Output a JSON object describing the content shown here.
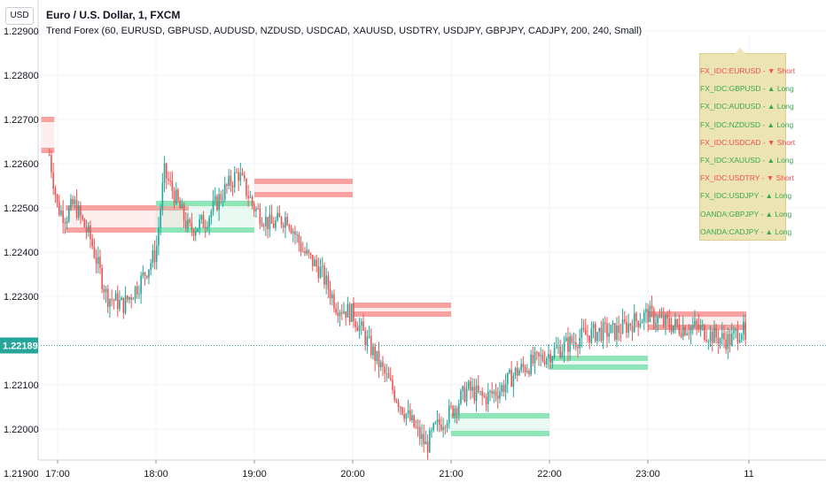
{
  "header": {
    "symbol_title": "Euro / U.S. Dollar, 1, FXCM",
    "indicator": "Trend Forex (60, EURUSD, GBPUSD, AUDUSD, NZDUSD, USDCAD, XAUUSD, USDTRY, USDJPY, GBPJPY, CADJPY, 200, 240, Small)"
  },
  "currency_badge": "USD",
  "colors": {
    "bull": "#26a69a",
    "bear": "#ef5350",
    "short_zone": "#f7a1a1",
    "long_zone": "#8ee6b8",
    "table_bg": "#ece5b3",
    "short_text": "#f14c4c",
    "long_text": "#3aa654"
  },
  "price_axis": {
    "labels": [
      "1.22900",
      "1.22800",
      "1.22700",
      "1.22600",
      "1.22500",
      "1.22400",
      "1.22300",
      "1.22100",
      "1.22000",
      "1.21900"
    ],
    "current_price": "1.22189"
  },
  "time_axis": {
    "labels": [
      "17:00",
      "18:00",
      "19:00",
      "20:00",
      "21:00",
      "22:00",
      "23:00",
      "11"
    ]
  },
  "trend_table": [
    {
      "label": "FX_IDC:EURUSD - ▼ Short",
      "direction": "short"
    },
    {
      "label": "FX_IDC:GBPUSD - ▲ Long",
      "direction": "long"
    },
    {
      "label": "FX_IDC:AUDUSD - ▲ Long",
      "direction": "long"
    },
    {
      "label": "FX_IDC:NZDUSD - ▲ Long",
      "direction": "long"
    },
    {
      "label": "FX_IDC:USDCAD - ▼ Short",
      "direction": "short"
    },
    {
      "label": "FX_IDC:XAUUSD - ▲ Long",
      "direction": "long"
    },
    {
      "label": "FX_IDC:USDTRY - ▼ Short",
      "direction": "short"
    },
    {
      "label": "FX_IDC:USDJPY - ▲ Long",
      "direction": "long"
    },
    {
      "label": "OANDA:GBPJPY - ▲ Long",
      "direction": "long"
    },
    {
      "label": "OANDA:CADJPY - ▲ Long",
      "direction": "long"
    }
  ],
  "chart_data": {
    "type": "candlestick",
    "y_range": [
      1.2185,
      1.2297
    ],
    "price_path": [
      [
        "16:55",
        1.2262
      ],
      [
        "17:00",
        1.225
      ],
      [
        "17:05",
        1.2248
      ],
      [
        "17:10",
        1.2251
      ],
      [
        "17:20",
        1.2243
      ],
      [
        "17:30",
        1.223
      ],
      [
        "17:40",
        1.2228
      ],
      [
        "17:50",
        1.2233
      ],
      [
        "18:00",
        1.224
      ],
      [
        "18:05",
        1.2258
      ],
      [
        "18:10",
        1.2254
      ],
      [
        "18:20",
        1.2245
      ],
      [
        "18:30",
        1.2247
      ],
      [
        "18:40",
        1.2253
      ],
      [
        "18:50",
        1.2258
      ],
      [
        "19:00",
        1.225
      ],
      [
        "19:10",
        1.2246
      ],
      [
        "19:20",
        1.2248
      ],
      [
        "19:30",
        1.224
      ],
      [
        "19:40",
        1.2236
      ],
      [
        "19:50",
        1.2228
      ],
      [
        "20:00",
        1.2226
      ],
      [
        "20:10",
        1.2219
      ],
      [
        "20:20",
        1.2212
      ],
      [
        "20:30",
        1.2205
      ],
      [
        "20:40",
        1.2199
      ],
      [
        "20:45",
        1.2196
      ],
      [
        "20:50",
        1.22
      ],
      [
        "21:00",
        1.2204
      ],
      [
        "21:10",
        1.2209
      ],
      [
        "21:20",
        1.2207
      ],
      [
        "21:30",
        1.2209
      ],
      [
        "21:40",
        1.2213
      ],
      [
        "21:50",
        1.2215
      ],
      [
        "22:00",
        1.2217
      ],
      [
        "22:10",
        1.2219
      ],
      [
        "22:20",
        1.2221
      ],
      [
        "22:30",
        1.2222
      ],
      [
        "22:40",
        1.2222
      ],
      [
        "22:50",
        1.2224
      ],
      [
        "23:00",
        1.2226
      ],
      [
        "23:10",
        1.2224
      ],
      [
        "23:20",
        1.2223
      ],
      [
        "23:30",
        1.2223
      ],
      [
        "23:40",
        1.2221
      ],
      [
        "23:50",
        1.222
      ],
      [
        "23:58",
        1.2223
      ],
      [
        "00:00",
        1.2218
      ]
    ],
    "zones": [
      {
        "type": "short",
        "start": "16:50",
        "end": "16:58",
        "top": 1.227,
        "bottom": 1.2263
      },
      {
        "type": "short",
        "start": "17:05",
        "end": "18:20",
        "top": 1.225,
        "bottom": 1.2245
      },
      {
        "type": "long",
        "start": "18:00",
        "end": "19:00",
        "top": 1.2251,
        "bottom": 1.2245
      },
      {
        "type": "short",
        "start": "19:00",
        "end": "20:00",
        "top": 1.2256,
        "bottom": 1.2253
      },
      {
        "type": "short",
        "start": "20:00",
        "end": "21:00",
        "top": 1.2228,
        "bottom": 1.2226
      },
      {
        "type": "long",
        "start": "21:00",
        "end": "22:00",
        "top": 1.2203,
        "bottom": 1.2199
      },
      {
        "type": "long",
        "start": "22:00",
        "end": "23:00",
        "top": 1.2216,
        "bottom": 1.2214
      },
      {
        "type": "short",
        "start": "23:00",
        "end": "24:00",
        "top": 1.2226,
        "bottom": 1.2223
      }
    ]
  }
}
